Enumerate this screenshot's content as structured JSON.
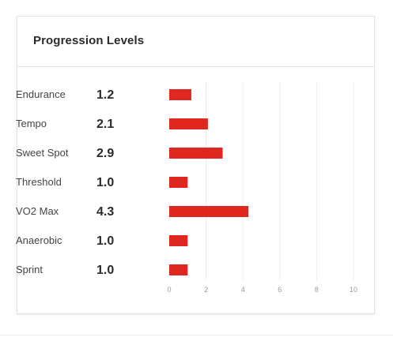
{
  "widget": {
    "title": "Progression Levels"
  },
  "chart_data": {
    "type": "bar",
    "orientation": "horizontal",
    "categories": [
      "Endurance",
      "Tempo",
      "Sweet Spot",
      "Threshold",
      "VO2 Max",
      "Anaerobic",
      "Sprint"
    ],
    "values": [
      1.2,
      2.1,
      2.9,
      1.0,
      4.3,
      1.0,
      1.0
    ],
    "value_labels": [
      "1.2",
      "2.1",
      "2.9",
      "1.0",
      "4.3",
      "1.0",
      "1.0"
    ],
    "x_ticks": [
      0,
      2,
      4,
      6,
      8,
      10
    ],
    "xlim": [
      0,
      10
    ],
    "grid": true,
    "bar_color": "#e0271f",
    "title": "",
    "xlabel": "",
    "ylabel": ""
  }
}
